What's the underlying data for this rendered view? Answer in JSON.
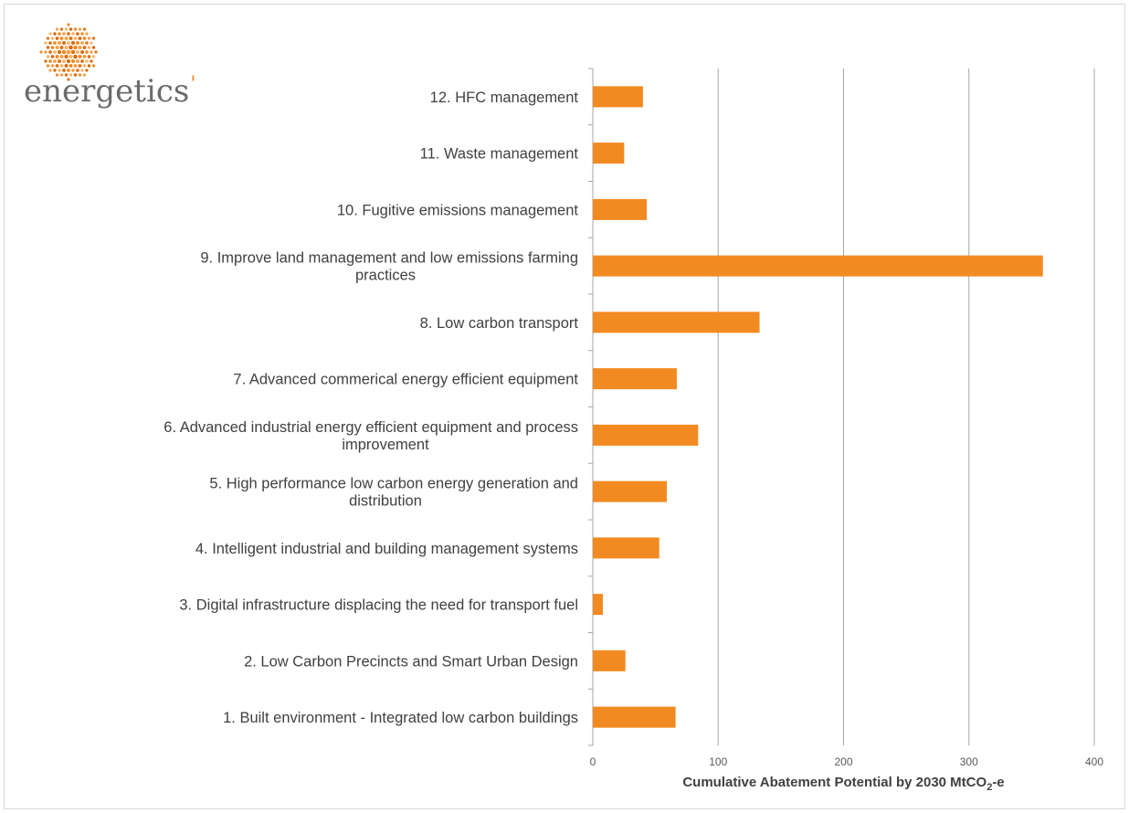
{
  "logo": {
    "wordmark": "energetics",
    "accent_color": "#f28a22",
    "icon": "dotted-sphere-logo-icon"
  },
  "chart_data": {
    "type": "bar",
    "orientation": "horizontal",
    "categories": [
      "1. Built environment - Integrated low carbon buildings",
      "2. Low Carbon Precincts and Smart Urban Design",
      "3. Digital infrastructure displacing the need for transport fuel",
      "4. Intelligent industrial and building management systems",
      "5. High performance low carbon energy generation and distribution",
      "6. Advanced industrial energy efficient equipment and process improvement",
      "7. Advanced commerical energy efficient equipment",
      "8. Low carbon transport",
      "9. Improve land management and low emissions farming practices",
      "10. Fugitive emissions management",
      "11. Waste management",
      "12. HFC management"
    ],
    "category_lines": [
      [
        "1. Built environment - Integrated low carbon buildings"
      ],
      [
        "2. Low Carbon Precincts and Smart Urban Design"
      ],
      [
        "3. Digital infrastructure displacing the need for transport fuel"
      ],
      [
        "4. Intelligent industrial and building management systems"
      ],
      [
        "5. High performance low carbon energy generation and",
        "distribution"
      ],
      [
        "6. Advanced industrial energy efficient equipment and process",
        "improvement"
      ],
      [
        "7. Advanced commerical energy efficient equipment"
      ],
      [
        "8. Low carbon transport"
      ],
      [
        "9. Improve land management and low emissions farming",
        "practices"
      ],
      [
        "10. Fugitive emissions management"
      ],
      [
        "11. Waste management"
      ],
      [
        "12. HFC management"
      ]
    ],
    "values": [
      66,
      26,
      8,
      53,
      59,
      84,
      67,
      133,
      359,
      43,
      25,
      40
    ],
    "xlim": [
      0,
      400
    ],
    "xticks": [
      0,
      100,
      200,
      300,
      400
    ],
    "xlabel_main": "Cumulative Abatement Potential by 2030  MtCO",
    "xlabel_sub": "2",
    "xlabel_tail": "-e",
    "ylabel": "",
    "title": "",
    "grid": "vertical",
    "legend": "none",
    "bar_color": "#f28a22",
    "grid_color": "#a6a6a6",
    "axis_color": "#a6a6a6",
    "label_color": "#404040"
  }
}
